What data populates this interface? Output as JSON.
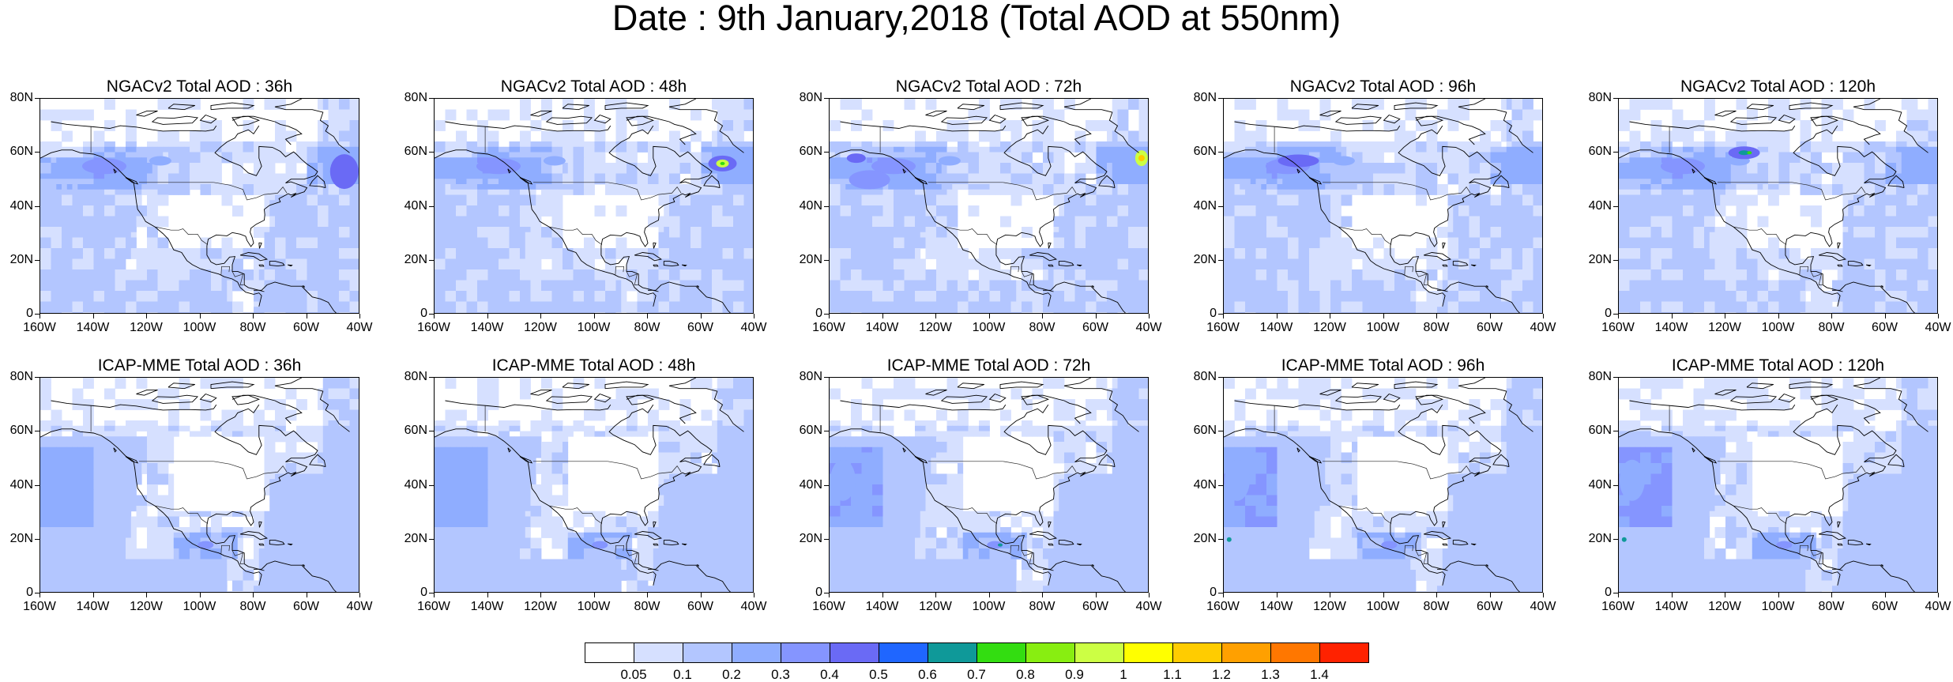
{
  "title": "Date : 9th January,2018 (Total AOD at 550nm)",
  "x_axis_labels": [
    "160W",
    "140W",
    "120W",
    "100W",
    "80W",
    "60W",
    "40W"
  ],
  "y_axis_labels": [
    "80N",
    "60N",
    "40N",
    "20N",
    "0"
  ],
  "panels": [
    {
      "title": "NGACv2 Total AOD : 36h",
      "model": "NGAC",
      "hour": 36
    },
    {
      "title": "NGACv2 Total AOD : 48h",
      "model": "NGAC",
      "hour": 48
    },
    {
      "title": "NGACv2 Total AOD : 72h",
      "model": "NGAC",
      "hour": 72
    },
    {
      "title": "NGACv2 Total AOD : 96h",
      "model": "NGAC",
      "hour": 96
    },
    {
      "title": "NGACv2 Total AOD : 120h",
      "model": "NGAC",
      "hour": 120
    },
    {
      "title": "ICAP-MME Total AOD : 36h",
      "model": "ICAP",
      "hour": 36
    },
    {
      "title": "ICAP-MME Total AOD : 48h",
      "model": "ICAP",
      "hour": 48
    },
    {
      "title": "ICAP-MME Total AOD : 72h",
      "model": "ICAP",
      "hour": 72
    },
    {
      "title": "ICAP-MME Total AOD : 96h",
      "model": "ICAP",
      "hour": 96
    },
    {
      "title": "ICAP-MME Total AOD : 120h",
      "model": "ICAP",
      "hour": 120
    }
  ],
  "colorbar": {
    "labels": [
      "0.05",
      "0.1",
      "0.2",
      "0.3",
      "0.4",
      "0.5",
      "0.6",
      "0.7",
      "0.8",
      "0.9",
      "1",
      "1.1",
      "1.2",
      "1.3",
      "1.4"
    ],
    "colors": [
      "#ffffff",
      "#d6e0ff",
      "#b3c6ff",
      "#8fadff",
      "#8595ff",
      "#6a6af5",
      "#1f66ff",
      "#0f9999",
      "#33dd11",
      "#88ee11",
      "#ccff44",
      "#ffff00",
      "#ffcc00",
      "#ffa000",
      "#ff7700",
      "#ff2200"
    ]
  }
}
